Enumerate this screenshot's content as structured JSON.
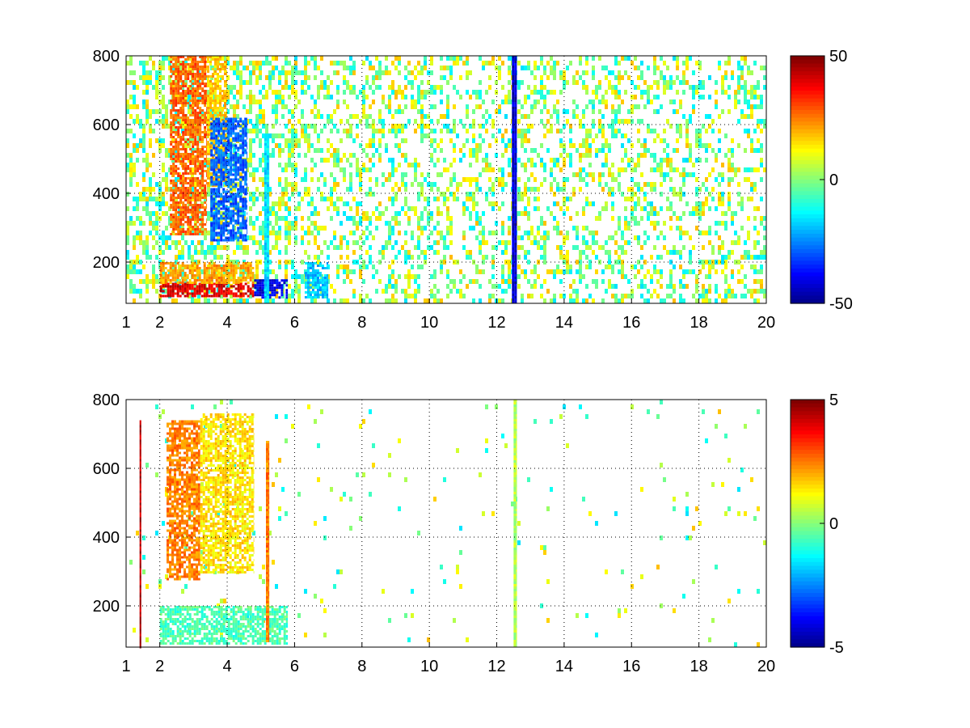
{
  "chart_data": [
    {
      "type": "heatmap",
      "title": "",
      "xlabel": "",
      "ylabel": "",
      "xlim": [
        1,
        20
      ],
      "ylim": [
        80,
        800
      ],
      "x_ticks": [
        1,
        2,
        4,
        6,
        8,
        10,
        12,
        14,
        16,
        18,
        20
      ],
      "y_ticks": [
        200,
        400,
        600,
        800
      ],
      "grid": true,
      "colormap": "jet",
      "colorbar": {
        "range": [
          -50,
          50
        ],
        "ticks": [
          50,
          0,
          -50
        ]
      },
      "scatter_density": 0.33,
      "regions": [
        {
          "description": "red band",
          "x": [
            2,
            4.8
          ],
          "y": [
            100,
            140
          ],
          "value": 40
        },
        {
          "description": "orange band",
          "x": [
            2,
            4.8
          ],
          "y": [
            140,
            200
          ],
          "value": 22
        },
        {
          "description": "blue band",
          "x": [
            4.8,
            5.8
          ],
          "y": [
            100,
            150
          ],
          "value": -40
        },
        {
          "description": "orange arc",
          "x": [
            2.3,
            3.4
          ],
          "y": [
            280,
            800
          ],
          "value": 28
        },
        {
          "description": "yellow arc",
          "x": [
            3.4,
            4.0
          ],
          "y": [
            420,
            800
          ],
          "value": 18
        },
        {
          "description": "blue arc",
          "x": [
            3.5,
            4.6
          ],
          "y": [
            260,
            620
          ],
          "value": -28
        },
        {
          "description": "cyan streak",
          "x": [
            5.1,
            5.25
          ],
          "y": [
            80,
            560
          ],
          "value": -15
        },
        {
          "description": "blue patch",
          "x": [
            6.3,
            7.0
          ],
          "y": [
            100,
            200
          ],
          "value": -18
        },
        {
          "description": "vertical line",
          "x": [
            12.45,
            12.6
          ],
          "y": [
            80,
            800
          ],
          "value": -42
        }
      ]
    },
    {
      "type": "heatmap",
      "title": "",
      "xlabel": "",
      "ylabel": "",
      "xlim": [
        1,
        20
      ],
      "ylim": [
        80,
        800
      ],
      "x_ticks": [
        1,
        2,
        4,
        6,
        8,
        10,
        12,
        14,
        16,
        18,
        20
      ],
      "y_ticks": [
        200,
        400,
        600,
        800
      ],
      "grid": true,
      "colormap": "jet",
      "colorbar": {
        "range": [
          -5,
          5
        ],
        "ticks": [
          5,
          0,
          -5
        ]
      },
      "scatter_density": 0.02,
      "regions": [
        {
          "description": "dark red line",
          "x": [
            1.4,
            1.45
          ],
          "y": [
            80,
            740
          ],
          "value": 4.5
        },
        {
          "description": "speckled arc",
          "x": [
            2.2,
            3.2
          ],
          "y": [
            280,
            740
          ],
          "value": 2.5
        },
        {
          "description": "speckled arc",
          "x": [
            3.2,
            4.8
          ],
          "y": [
            300,
            760
          ],
          "value": 1.5
        },
        {
          "description": "green band",
          "x": [
            2,
            5.8
          ],
          "y": [
            90,
            200
          ],
          "value": -0.5
        },
        {
          "description": "vertical streak",
          "x": [
            5.15,
            5.25
          ],
          "y": [
            100,
            680
          ],
          "value": 2.5
        },
        {
          "description": "vertical line",
          "x": [
            12.5,
            12.6
          ],
          "y": [
            80,
            800
          ],
          "value": 0.5
        }
      ]
    }
  ]
}
